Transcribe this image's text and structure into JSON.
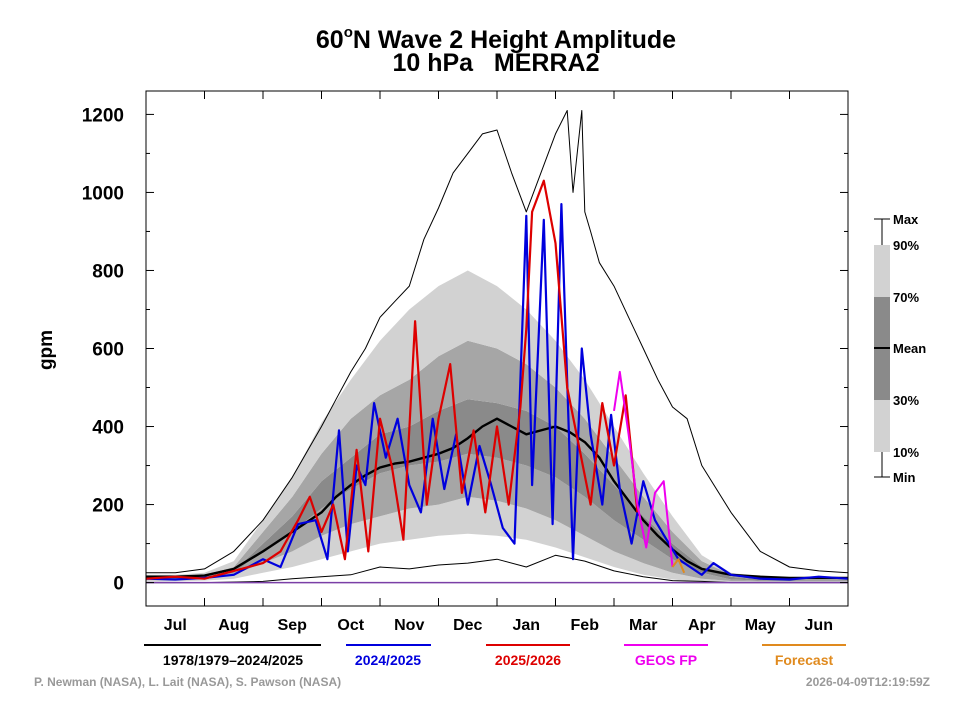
{
  "chart_data": {
    "type": "line",
    "title": "60°N Wave 2 Height Amplitude",
    "title_lat": "60",
    "title_deg": "o",
    "title_rest": "N Wave 2 Height Amplitude",
    "subtitle": "10 hPa   MERRA2",
    "ylabel": "gpm",
    "ylim": [
      -60,
      1260
    ],
    "yticks": [
      0,
      200,
      400,
      600,
      800,
      1000,
      1200
    ],
    "xlim": [
      0,
      12
    ],
    "months": [
      "Jul",
      "Aug",
      "Sep",
      "Oct",
      "Nov",
      "Dec",
      "Jan",
      "Feb",
      "Mar",
      "Apr",
      "May",
      "Jun"
    ],
    "band_months": [
      0,
      0.5,
      1,
      1.5,
      2,
      2.5,
      3,
      3.5,
      4,
      4.5,
      5,
      5.5,
      6,
      6.5,
      7,
      7.5,
      8,
      8.5,
      9,
      9.5,
      10,
      10.5,
      11,
      11.5,
      12
    ],
    "band_levels": [
      [
        2,
        3,
        5,
        10,
        25,
        40,
        60,
        80,
        100,
        110,
        120,
        125,
        120,
        110,
        90,
        65,
        40,
        20,
        8,
        2,
        0,
        0,
        0,
        0,
        0
      ],
      [
        8,
        8,
        10,
        20,
        50,
        80,
        120,
        150,
        170,
        190,
        200,
        220,
        210,
        190,
        160,
        120,
        80,
        50,
        25,
        10,
        4,
        3,
        3,
        3,
        3
      ],
      [
        10,
        10,
        12,
        25,
        80,
        130,
        190,
        240,
        280,
        300,
        310,
        330,
        320,
        300,
        270,
        220,
        160,
        110,
        60,
        25,
        8,
        5,
        4,
        4,
        4
      ],
      [
        12,
        12,
        15,
        30,
        100,
        170,
        260,
        320,
        380,
        400,
        440,
        470,
        460,
        440,
        400,
        330,
        250,
        170,
        100,
        40,
        15,
        8,
        6,
        6,
        6
      ],
      [
        15,
        15,
        20,
        40,
        130,
        220,
        330,
        420,
        480,
        520,
        580,
        620,
        600,
        560,
        500,
        420,
        320,
        220,
        130,
        55,
        20,
        10,
        8,
        8,
        8
      ],
      [
        20,
        20,
        25,
        55,
        160,
        270,
        410,
        520,
        620,
        700,
        760,
        800,
        760,
        700,
        620,
        520,
        400,
        280,
        170,
        70,
        25,
        15,
        10,
        10,
        10
      ]
    ],
    "band_colors": [
      "#d2d2d2",
      "#a6a6a6",
      "#8a8a8a",
      "#a6a6a6",
      "#d2d2d2"
    ],
    "series": [
      {
        "name": "1978/1979–2024/2025 Mean",
        "color": "#000000",
        "width": 2.4,
        "x": [
          0,
          0.5,
          1,
          1.5,
          2,
          2.5,
          3,
          3.25,
          3.5,
          3.75,
          4,
          4.25,
          4.5,
          4.75,
          5,
          5.25,
          5.5,
          5.75,
          6,
          6.25,
          6.5,
          6.75,
          7,
          7.25,
          7.5,
          7.75,
          8,
          8.25,
          8.5,
          8.75,
          9,
          9.25,
          9.5,
          10,
          10.5,
          11,
          11.5,
          12
        ],
        "y": [
          15,
          15,
          18,
          35,
          80,
          130,
          180,
          220,
          250,
          275,
          295,
          305,
          310,
          320,
          330,
          345,
          370,
          400,
          420,
          400,
          380,
          390,
          400,
          385,
          360,
          320,
          260,
          210,
          160,
          120,
          85,
          55,
          35,
          20,
          15,
          12,
          12,
          12
        ]
      },
      {
        "name": "1978/1979–2024/2025 Max",
        "color": "#000000",
        "width": 1,
        "x": [
          0,
          0.5,
          1,
          1.5,
          2,
          2.5,
          3,
          3.25,
          3.5,
          3.75,
          4,
          4.25,
          4.5,
          4.75,
          5,
          5.25,
          5.5,
          5.75,
          6,
          6.25,
          6.5,
          6.75,
          7,
          7.2,
          7.3,
          7.45,
          7.5,
          7.6,
          7.75,
          8,
          8.25,
          8.5,
          8.75,
          9,
          9.25,
          9.5,
          10,
          10.5,
          11,
          11.5,
          12
        ],
        "y": [
          25,
          25,
          35,
          80,
          160,
          270,
          400,
          470,
          540,
          600,
          680,
          720,
          760,
          880,
          960,
          1050,
          1100,
          1150,
          1160,
          1050,
          950,
          1050,
          1150,
          1210,
          1000,
          1210,
          950,
          900,
          820,
          760,
          680,
          600,
          520,
          450,
          420,
          300,
          180,
          80,
          40,
          30,
          25
        ]
      },
      {
        "name": "1978/1979–2024/2025 Min",
        "color": "#000000",
        "width": 1,
        "x": [
          0,
          1,
          2,
          2.5,
          3,
          3.5,
          4,
          4.5,
          5,
          5.5,
          6,
          6.5,
          7,
          7.5,
          8,
          8.5,
          9,
          9.5,
          10,
          11,
          12
        ],
        "y": [
          0,
          0,
          3,
          10,
          15,
          20,
          40,
          35,
          45,
          50,
          60,
          40,
          70,
          55,
          30,
          15,
          5,
          3,
          0,
          0,
          0
        ]
      },
      {
        "name": "2024/2025",
        "color": "#0000dd",
        "width": 2.2,
        "x": [
          0,
          0.5,
          1,
          1.5,
          2,
          2.3,
          2.6,
          2.9,
          3.1,
          3.3,
          3.45,
          3.6,
          3.75,
          3.9,
          4.1,
          4.3,
          4.5,
          4.7,
          4.9,
          5.1,
          5.3,
          5.5,
          5.7,
          5.9,
          6.1,
          6.3,
          6.5,
          6.6,
          6.8,
          6.95,
          7.1,
          7.3,
          7.45,
          7.6,
          7.8,
          7.95,
          8.1,
          8.3,
          8.5,
          8.7,
          8.9,
          9.1,
          9.3,
          9.5,
          9.7,
          10,
          10.5,
          11,
          11.5,
          12
        ],
        "y": [
          10,
          8,
          12,
          20,
          60,
          40,
          150,
          160,
          60,
          390,
          80,
          300,
          250,
          460,
          320,
          420,
          250,
          180,
          420,
          240,
          380,
          200,
          350,
          250,
          140,
          100,
          940,
          250,
          930,
          150,
          970,
          60,
          600,
          380,
          200,
          430,
          240,
          100,
          260,
          160,
          110,
          60,
          40,
          20,
          50,
          20,
          10,
          8,
          15,
          10
        ]
      },
      {
        "name": "2025/2026",
        "color": "#dd0000",
        "width": 2.2,
        "x": [
          0,
          0.5,
          1,
          1.5,
          2,
          2.3,
          2.6,
          2.8,
          3,
          3.2,
          3.4,
          3.6,
          3.8,
          4,
          4.2,
          4.4,
          4.6,
          4.8,
          5,
          5.2,
          5.4,
          5.6,
          5.8,
          6,
          6.2,
          6.4,
          6.5,
          6.6,
          6.8,
          7,
          7.2,
          7.4,
          7.6,
          7.8,
          8,
          8.2,
          8.4
        ],
        "y": [
          10,
          15,
          10,
          30,
          50,
          80,
          160,
          220,
          130,
          200,
          60,
          340,
          80,
          420,
          300,
          110,
          670,
          200,
          420,
          560,
          230,
          390,
          180,
          400,
          200,
          450,
          650,
          950,
          1030,
          870,
          500,
          350,
          200,
          460,
          300,
          480,
          180
        ]
      },
      {
        "name": "GEOS FP",
        "color": "#ee00ee",
        "width": 2,
        "x": [
          8.0,
          8.1,
          8.25,
          8.4,
          8.55,
          8.7,
          8.85,
          9.0
        ],
        "y": [
          440,
          540,
          380,
          200,
          90,
          230,
          260,
          40
        ]
      },
      {
        "name": "Forecast",
        "color": "#e08a1e",
        "width": 2,
        "x": [
          9.0,
          9.1,
          9.2
        ],
        "y": [
          40,
          60,
          25
        ]
      }
    ],
    "legend": [
      {
        "label": "1978/1979–2024/2025",
        "color": "#000000"
      },
      {
        "label": "2024/2025",
        "color": "#0000dd"
      },
      {
        "label": "2025/2026",
        "color": "#dd0000"
      },
      {
        "label": "GEOS FP",
        "color": "#ee00ee"
      },
      {
        "label": "Forecast",
        "color": "#e08a1e"
      }
    ],
    "percentile_key": {
      "labels": [
        "Max",
        "90%",
        "70%",
        "Mean",
        "30%",
        "10%",
        "Min"
      ],
      "colors": [
        "#d2d2d2",
        "#8a8a8a",
        "#d2d2d2"
      ]
    }
  },
  "footer": {
    "credit": "P. Newman (NASA), L. Lait (NASA), S. Pawson (NASA)",
    "timestamp": "2026-04-09T12:19:59Z"
  }
}
